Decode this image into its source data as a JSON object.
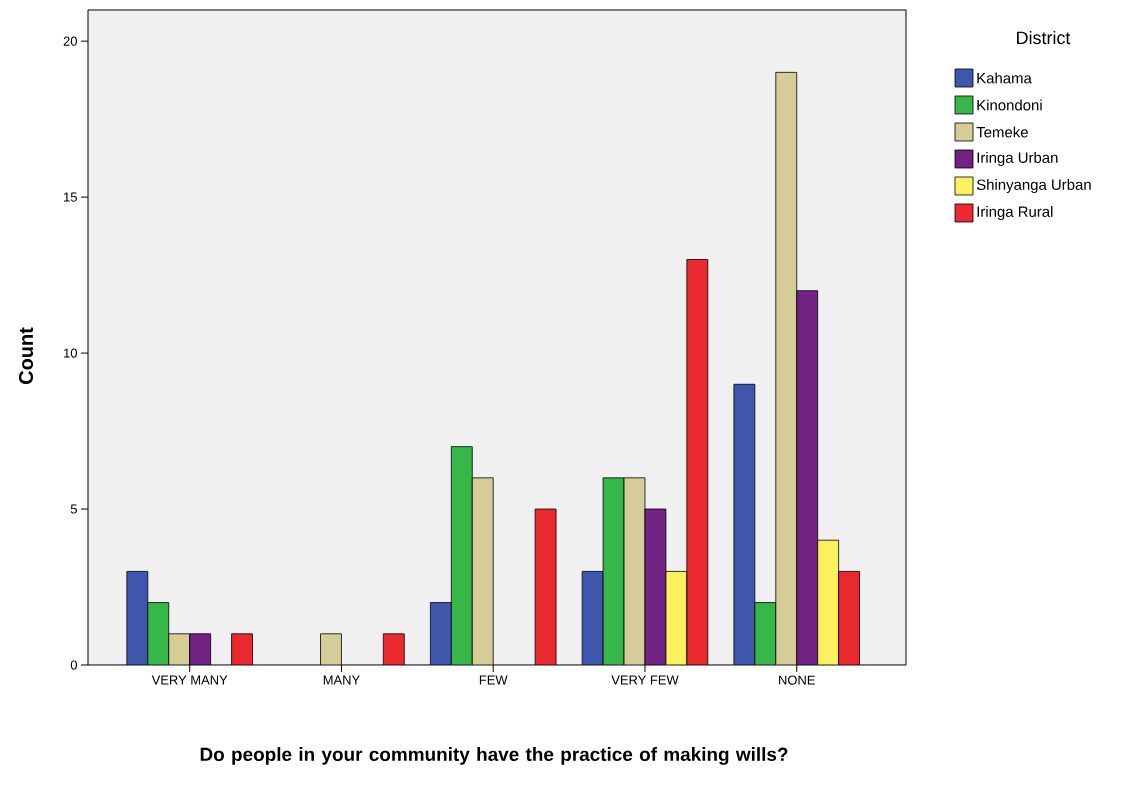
{
  "chart_data": {
    "type": "bar",
    "xlabel": "Do people in your community have the practice of making wills?",
    "ylabel": "Count",
    "legend_title": "District",
    "categories": [
      "VERY MANY",
      "MANY",
      "FEW",
      "VERY FEW",
      "NONE"
    ],
    "series": [
      {
        "name": "Kahama",
        "color": "#3f56ad",
        "values": [
          3,
          null,
          2,
          3,
          9
        ]
      },
      {
        "name": "Kinondoni",
        "color": "#37b64a",
        "values": [
          2,
          null,
          7,
          6,
          2
        ]
      },
      {
        "name": "Temeke",
        "color": "#d5cc97",
        "values": [
          1,
          1,
          6,
          6,
          19
        ]
      },
      {
        "name": "Iringa Urban",
        "color": "#722283",
        "values": [
          1,
          null,
          null,
          5,
          12
        ]
      },
      {
        "name": "Shinyanga Urban",
        "color": "#f9f25e",
        "values": [
          null,
          null,
          null,
          3,
          4
        ]
      },
      {
        "name": "Iringa Rural",
        "color": "#e9282f",
        "values": [
          1,
          1,
          5,
          13,
          3
        ]
      }
    ],
    "ylim": [
      0,
      21
    ],
    "yticks": [
      0,
      5,
      10,
      15,
      20
    ],
    "legend": "top right",
    "grid": false
  }
}
